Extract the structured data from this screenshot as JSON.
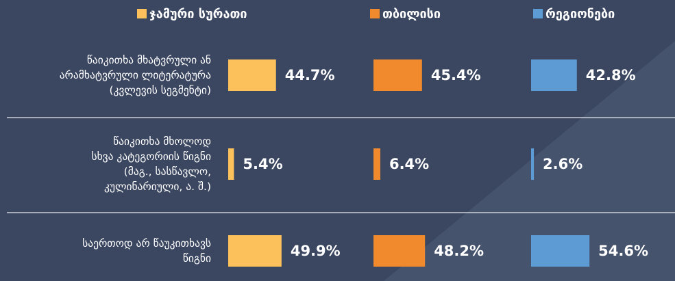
{
  "chart_data": {
    "type": "bar",
    "categories": [
      "წაიკითხა მხატვრული ან\nარამხატვრული ლიტერატურა\n(კვლევის სეგმენტი)",
      "წაიკითხა მხოლოდ\nსხვა კატეგორიის წიგნი\n(მაგ., სასწავლო,\nკულინარიული, ა. შ.)",
      "საერთოდ არ წაუკითხავს\nწიგნი"
    ],
    "series": [
      {
        "name": "ჯამური სურათი",
        "color": "#fdc15c",
        "values": [
          44.7,
          5.4,
          49.9
        ],
        "value_labels": [
          "44.7%",
          "5.4%",
          "49.9%"
        ]
      },
      {
        "name": "თბილისი",
        "color": "#f08a2c",
        "values": [
          45.4,
          6.4,
          48.2
        ],
        "value_labels": [
          "45.4%",
          "6.4%",
          "48.2%"
        ]
      },
      {
        "name": "რეგიონები",
        "color": "#5d9bd5",
        "values": [
          42.8,
          2.6,
          54.6
        ],
        "value_labels": [
          "42.8%",
          "2.6%",
          "54.6%"
        ]
      }
    ]
  }
}
